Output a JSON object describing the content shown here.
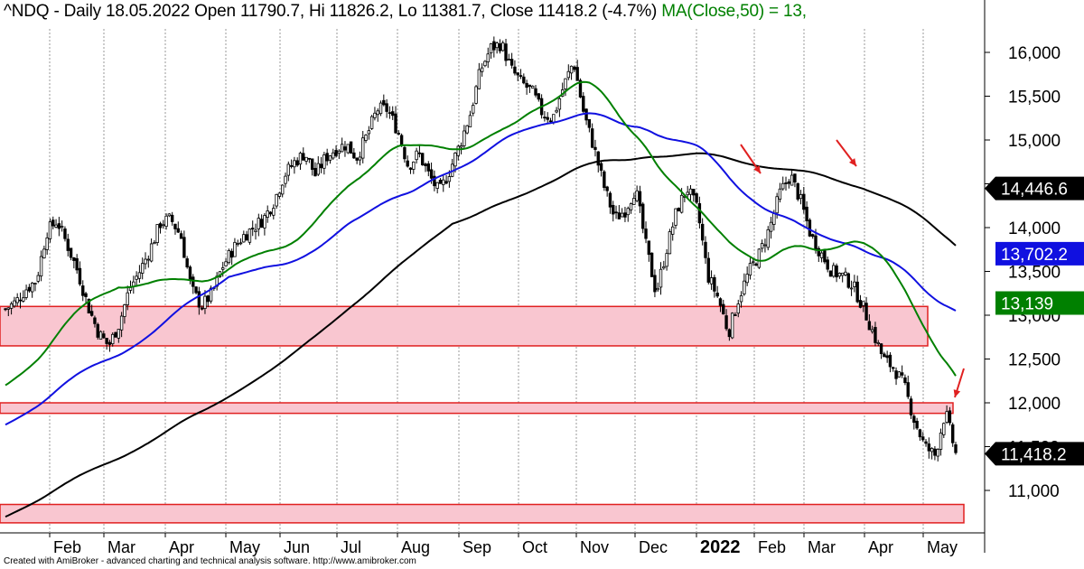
{
  "header": {
    "symbol": "^NDQ",
    "interval": "Daily",
    "date": "18.05.2022",
    "open_label": "Open",
    "open": "11790.7",
    "hi_label": "Hi",
    "hi": "11826.2",
    "lo_label": "Lo",
    "lo": "11381.7",
    "close_label": "Close",
    "close": "11418.2",
    "change": "(-4.7%)",
    "ma_text": "MA(Close,50) = 13,"
  },
  "footer": "Created with AmiBroker - advanced charting and technical analysis software. http://www.amibroker.com",
  "colors": {
    "zone_fill": "#f9c6d0",
    "zone_border": "#e02020",
    "ma50": "#008000",
    "ma100": "#1010e0",
    "ma200": "#000000",
    "arrow": "#e02020",
    "candle": "#000000"
  },
  "chart_data": {
    "type": "candlestick",
    "y_axis": {
      "ticks": [
        "11,000",
        "11,500",
        "12,000",
        "12,500",
        "13,000",
        "13,500",
        "14,000",
        "14,500",
        "15,000",
        "15,500",
        "16,000"
      ],
      "range": [
        10500,
        16250
      ],
      "side": "right"
    },
    "x_axis": {
      "labels": [
        "Feb",
        "Mar",
        "Apr",
        "May",
        "Jun",
        "Jul",
        "Aug",
        "Sep",
        "Oct",
        "Nov",
        "Dec",
        "2022",
        "Feb",
        "Mar",
        "Apr",
        "May"
      ]
    },
    "grid": "vertical month separators",
    "price_series": {
      "name": "^NDQ",
      "approx_closes": [
        13070,
        13150,
        13300,
        13400,
        13950,
        14080,
        13800,
        13500,
        13100,
        12800,
        12650,
        12900,
        13300,
        13500,
        13750,
        14050,
        14100,
        13900,
        13300,
        13100,
        13250,
        13550,
        13750,
        13900,
        14000,
        14100,
        14300,
        14600,
        14750,
        14850,
        14600,
        14800,
        14900,
        14950,
        14800,
        15050,
        15350,
        15350,
        15100,
        14700,
        14850,
        14600,
        14400,
        14650,
        14950,
        15300,
        15800,
        16050,
        16100,
        15800,
        15650,
        15550,
        15300,
        15250,
        15600,
        15900,
        15300,
        14900,
        14450,
        14100,
        14200,
        14450,
        13800,
        13250,
        13750,
        14200,
        14450,
        14200,
        13450,
        13200,
        12800,
        13200,
        13500,
        13700,
        14000,
        14400,
        14600,
        14300,
        13900,
        13700,
        13500,
        13450,
        13350,
        13100,
        12800,
        12500,
        12400,
        12200,
        11800,
        11500,
        11400,
        11900,
        11418
      ]
    },
    "series": [
      {
        "name": "MA(Close,50)",
        "last": "13,139"
      },
      {
        "last": "13,702.2"
      },
      {
        "last": "14,446.6"
      }
    ],
    "last_price_tag": "11,418.2",
    "zones": [
      {
        "low": 12650,
        "high": 13100
      },
      {
        "low": 11880,
        "high": 12000
      },
      {
        "low": 10630,
        "high": 10840
      }
    ],
    "annotations": [
      "red arrow",
      "red arrow",
      "red arrow"
    ]
  }
}
